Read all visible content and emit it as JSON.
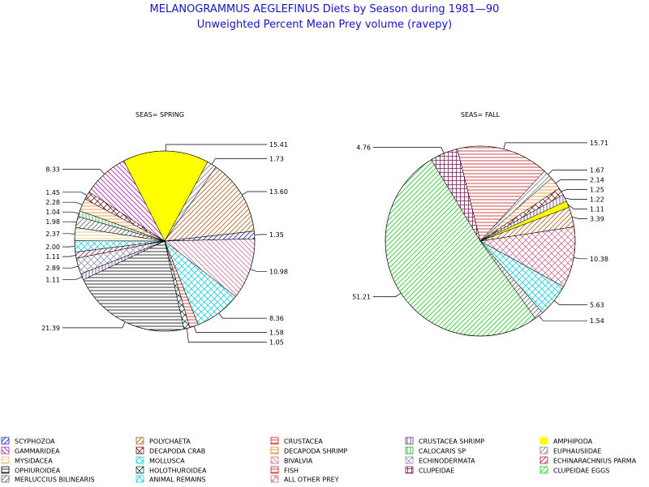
{
  "chart_data": {
    "type": "pie",
    "title": "MELANOGRAMMUS AEGLEFINUS Diets by Season during 1981—90",
    "subtitle": "Unweighted Percent Mean Prey volume (ravepy)",
    "legend_position": "bottom",
    "categories": [
      {
        "name": "SCYPHOZOA",
        "color": "#1a1acc",
        "pattern": "diag-up"
      },
      {
        "name": "POLYCHAETA",
        "color": "#b85a1a",
        "pattern": "diag-up"
      },
      {
        "name": "CRUSTACEA",
        "color": "#cc1a1a",
        "pattern": "horizontal"
      },
      {
        "name": "CRUSTACEA SHRIMP",
        "color": "#6a2a8a",
        "pattern": "vertical"
      },
      {
        "name": "AMPHIPODA",
        "color": "#ffff00",
        "pattern": "solid"
      },
      {
        "name": "GAMMARIDEA",
        "color": "#b01ab0",
        "pattern": "diag-down"
      },
      {
        "name": "DECAPODA CRAB",
        "color": "#7a1a1a",
        "pattern": "cross-diag"
      },
      {
        "name": "DECAPODA SHRIMP",
        "color": "#e8821a",
        "pattern": "horizontal"
      },
      {
        "name": "CALOCARIS SP",
        "color": "#1aaa1a",
        "pattern": "vertical"
      },
      {
        "name": "EUPHAUSIIDAE",
        "color": "#808080",
        "pattern": "diag-up"
      },
      {
        "name": "MYSIDACEA",
        "color": "#e0c070",
        "pattern": "horizontal"
      },
      {
        "name": "MOLLUSCA",
        "color": "#1ad0e0",
        "pattern": "cross-diag"
      },
      {
        "name": "BIVALVIA",
        "color": "#d07090",
        "pattern": "diag-down"
      },
      {
        "name": "ECHINODERMATA",
        "color": "#9090b0",
        "pattern": "cross-diag"
      },
      {
        "name": "ECHINARACHNIUS PARMA",
        "color": "#c01a3a",
        "pattern": "diag-up"
      },
      {
        "name": "OPHIUROIDEA",
        "color": "#000000",
        "pattern": "horizontal"
      },
      {
        "name": "HOLOTHUROIDEA",
        "color": "#1a4a3a",
        "pattern": "cross-diag"
      },
      {
        "name": "FISH",
        "color": "#cc1a1a",
        "pattern": "horizontal"
      },
      {
        "name": "CLUPEIDAE",
        "color": "#7a1a5a",
        "pattern": "cross"
      },
      {
        "name": "CLUPEIDAE EGGS",
        "color": "#1acc1a",
        "pattern": "diag-up"
      },
      {
        "name": "MERLUCCIUS BILINEARIS",
        "color": "#606060",
        "pattern": "diag-up"
      },
      {
        "name": "ANIMAL REMAINS",
        "color": "#1ad0e0",
        "pattern": "cross-diag"
      },
      {
        "name": "ALL OTHER PREY",
        "color": "#d07090",
        "pattern": "cross-diag"
      }
    ],
    "pies": [
      {
        "label": "SEAS= SPRING",
        "slices": [
          {
            "category": "AMPHIPODA",
            "value": 15.41,
            "label": "15.41"
          },
          {
            "category": "EUPHAUSIIDAE",
            "value": 1.73,
            "label": "1.73"
          },
          {
            "category": "POLYCHAETA",
            "value": 13.6,
            "label": "13.60"
          },
          {
            "category": "SCYPHOZOA",
            "value": 1.35,
            "label": "1.35"
          },
          {
            "category": "BIVALVIA",
            "value": 10.98,
            "label": "10.98"
          },
          {
            "category": "MOLLUSCA",
            "value": 8.36,
            "label": "8.36"
          },
          {
            "category": "FISH",
            "value": 1.58,
            "label": "1.58"
          },
          {
            "category": "HOLOTHUROIDEA",
            "value": 1.05,
            "label": "1.05"
          },
          {
            "category": "OPHIUROIDEA",
            "value": 21.39,
            "label": "21.39"
          },
          {
            "category": "CRUSTACEA SHRIMP",
            "value": 1.11,
            "label": "1.11"
          },
          {
            "category": "ECHINODERMATA",
            "value": 2.89,
            "label": "2.89"
          },
          {
            "category": "ECHINARACHNIUS PARMA",
            "value": 1.11,
            "label": "1.11"
          },
          {
            "category": "ANIMAL REMAINS",
            "value": 2.0,
            "label": "2.00"
          },
          {
            "category": "MYSIDACEA",
            "value": 2.37,
            "label": "2.37"
          },
          {
            "category": "CALOCARIS SP",
            "value": 1.04,
            "label": "1.04"
          },
          {
            "category": "DECAPODA SHRIMP",
            "value": 2.28,
            "label": "2.28"
          },
          {
            "category": "DECAPODA CRAB",
            "value": 1.45,
            "label": "1.45"
          },
          {
            "category": "GAMMARIDEA",
            "value": 8.33,
            "label": "8.33"
          }
        ],
        "unlabeled_slices": [
          {
            "category": "MERLUCCIUS BILINEARIS",
            "value": 1.98,
            "label": "1.98"
          }
        ]
      },
      {
        "label": "SEAS= FALL",
        "slices": [
          {
            "category": "CRUSTACEA",
            "value": 15.71,
            "label": "15.71"
          },
          {
            "category": "EUPHAUSIIDAE",
            "value": 1.67,
            "label": "1.67"
          },
          {
            "category": "DECAPODA SHRIMP",
            "value": 2.14,
            "label": "2.14"
          },
          {
            "category": "DECAPODA CRAB",
            "value": 1.25,
            "label": "1.25"
          },
          {
            "category": "CRUSTACEA SHRIMP",
            "value": 1.22,
            "label": "1.22"
          },
          {
            "category": "AMPHIPODA",
            "value": 1.11,
            "label": "1.11"
          },
          {
            "category": "POLYCHAETA",
            "value": 3.39,
            "label": "3.39"
          },
          {
            "category": "ALL OTHER PREY",
            "value": 10.38,
            "label": "10.38"
          },
          {
            "category": "MOLLUSCA",
            "value": 5.63,
            "label": "5.63"
          },
          {
            "category": "MERLUCCIUS BILINEARIS",
            "value": 1.54,
            "label": "1.54"
          },
          {
            "category": "CLUPEIDAE EGGS",
            "value": 51.21,
            "label": "51.21"
          },
          {
            "category": "CLUPEIDAE",
            "value": 4.76,
            "label": "4.76"
          }
        ]
      }
    ]
  }
}
